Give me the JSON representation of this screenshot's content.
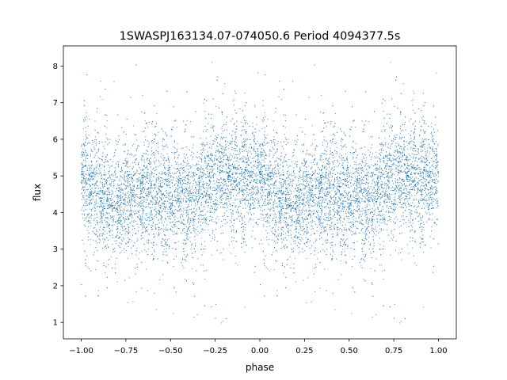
{
  "chart_data": {
    "type": "scatter",
    "title": "1SWASPJ163134.07-074050.6 Period 4094377.5s",
    "xlabel": "phase",
    "ylabel": "flux",
    "xlim": [
      -1.1,
      1.1
    ],
    "ylim": [
      0.55,
      8.55
    ],
    "grid": false,
    "legend": "none",
    "point_color": "#1f77b4",
    "x_ticks": [
      -1.0,
      -0.75,
      -0.5,
      -0.25,
      0.0,
      0.25,
      0.5,
      0.75,
      1.0
    ],
    "x_tick_labels": [
      "−1.00",
      "−0.75",
      "−0.50",
      "−0.25",
      "0.00",
      "0.25",
      "0.50",
      "0.75",
      "1.00"
    ],
    "y_ticks": [
      1,
      2,
      3,
      4,
      5,
      6,
      7,
      8
    ],
    "y_tick_labels": [
      "1",
      "2",
      "3",
      "4",
      "5",
      "6",
      "7",
      "8"
    ],
    "series": [
      {
        "description": "phase-folded light curve shown twice (phase -1..0 and 0..1)",
        "x_range": [
          -1.0,
          1.0
        ],
        "flux_profile": [
          {
            "phase": 0.0,
            "median": 5.0
          },
          {
            "phase": 0.05,
            "median": 4.7
          },
          {
            "phase": 0.1,
            "median": 4.4
          },
          {
            "phase": 0.2,
            "median": 4.2
          },
          {
            "phase": 0.3,
            "median": 4.3
          },
          {
            "phase": 0.35,
            "median": 4.5
          },
          {
            "phase": 0.42,
            "median": 4.4
          },
          {
            "phase": 0.5,
            "median": 4.5
          },
          {
            "phase": 0.6,
            "median": 4.3
          },
          {
            "phase": 0.7,
            "median": 4.8
          },
          {
            "phase": 0.8,
            "median": 5.0
          },
          {
            "phase": 0.9,
            "median": 4.9
          },
          {
            "phase": 1.0,
            "median": 5.0
          }
        ],
        "flux_min": 0.9,
        "flux_max": 8.1
      }
    ]
  }
}
